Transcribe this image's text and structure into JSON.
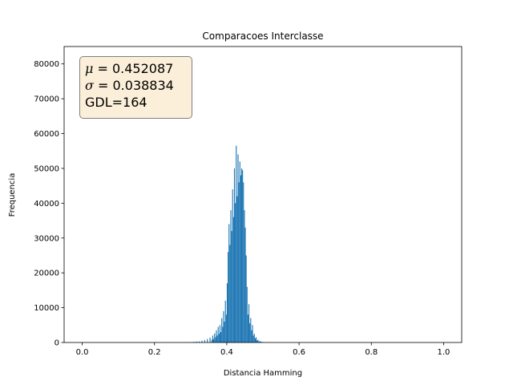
{
  "chart_data": {
    "type": "bar",
    "title": "Comparacoes Interclasse",
    "xlabel": "Distancia Hamming",
    "ylabel": "Frequencia",
    "xlim": [
      -0.05,
      1.05
    ],
    "ylim": [
      0,
      85000
    ],
    "x_ticks": [
      0.0,
      0.2,
      0.4,
      0.6,
      0.8,
      1.0
    ],
    "x_tick_labels": [
      "0.0",
      "0.2",
      "0.4",
      "0.6",
      "0.8",
      "1.0"
    ],
    "y_ticks": [
      0,
      10000,
      20000,
      30000,
      40000,
      50000,
      60000,
      70000,
      80000
    ],
    "y_tick_labels": [
      "0",
      "10000",
      "20000",
      "30000",
      "40000",
      "50000",
      "60000",
      "70000",
      "80000"
    ],
    "bar_color": "#1f77b4",
    "grid": false,
    "bin_width": 0.0025,
    "bin_start": 0.3,
    "bin_values": [
      100,
      0,
      0,
      200,
      0,
      0,
      300,
      0,
      0,
      300,
      0,
      0,
      500,
      0,
      0,
      700,
      0,
      0,
      1000,
      0,
      0,
      1400,
      0,
      800,
      2000,
      1000,
      2600,
      1500,
      3500,
      2000,
      4500,
      2500,
      5000,
      3000,
      7000,
      4500,
      9000,
      6000,
      12000,
      8000,
      17000,
      26000,
      34000,
      28000,
      38000,
      32000,
      44000,
      36000,
      50000,
      40000,
      56500,
      42000,
      54000,
      46000,
      52000,
      48000,
      50000,
      49500,
      46000,
      38000,
      33000,
      25000,
      16000,
      8000,
      11000,
      5500,
      7000,
      3500,
      5000,
      2000,
      2500,
      1200,
      1500,
      600,
      800,
      300,
      400,
      200,
      200,
      100,
      100,
      0,
      50,
      0,
      50
    ]
  },
  "stats_box": {
    "mu_symbol": "μ",
    "mu_value": " = 0.452087",
    "sigma_symbol": "σ",
    "sigma_value": " = 0.038834",
    "gdl_text": "GDL=164"
  }
}
